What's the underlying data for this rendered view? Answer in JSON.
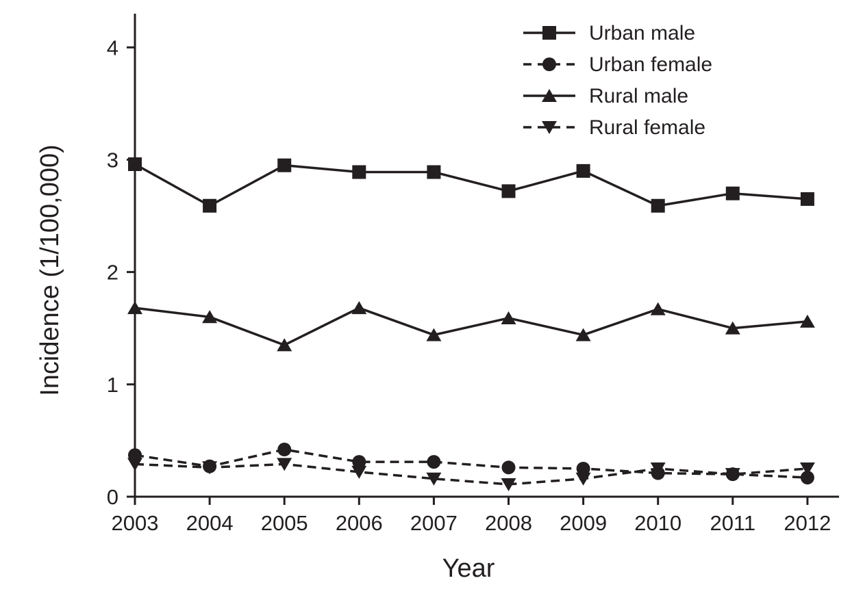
{
  "chart_data": {
    "type": "line",
    "title": "",
    "xlabel": "Year",
    "ylabel": "Incidence  (1/100,000)",
    "categories": [
      "2003",
      "2004",
      "2005",
      "2006",
      "2007",
      "2008",
      "2009",
      "2010",
      "2011",
      "2012"
    ],
    "ylim": [
      0,
      4.3
    ],
    "yticks": [
      0,
      1,
      2,
      3,
      4
    ],
    "yticks_labels": [
      "0",
      "1",
      "2",
      "3",
      "4"
    ],
    "grid": false,
    "legend_position": "top-right",
    "series": [
      {
        "name": "Urban male",
        "marker": "square",
        "line_style": "solid",
        "color": "#231f20",
        "values": [
          2.96,
          2.59,
          2.95,
          2.89,
          2.89,
          2.72,
          2.9,
          2.59,
          2.7,
          2.65
        ]
      },
      {
        "name": "Urban female",
        "marker": "circle",
        "line_style": "dashed",
        "color": "#231f20",
        "values": [
          0.37,
          0.27,
          0.42,
          0.31,
          0.31,
          0.26,
          0.25,
          0.21,
          0.2,
          0.17
        ]
      },
      {
        "name": "Rural male",
        "marker": "triangle-up",
        "line_style": "solid",
        "color": "#231f20",
        "values": [
          1.68,
          1.6,
          1.35,
          1.68,
          1.44,
          1.59,
          1.44,
          1.67,
          1.5,
          1.56
        ]
      },
      {
        "name": "Rural female",
        "marker": "triangle-down",
        "line_style": "dashed",
        "color": "#231f20",
        "values": [
          0.29,
          0.26,
          0.29,
          0.22,
          0.16,
          0.11,
          0.16,
          0.25,
          0.2,
          0.25
        ]
      }
    ]
  }
}
